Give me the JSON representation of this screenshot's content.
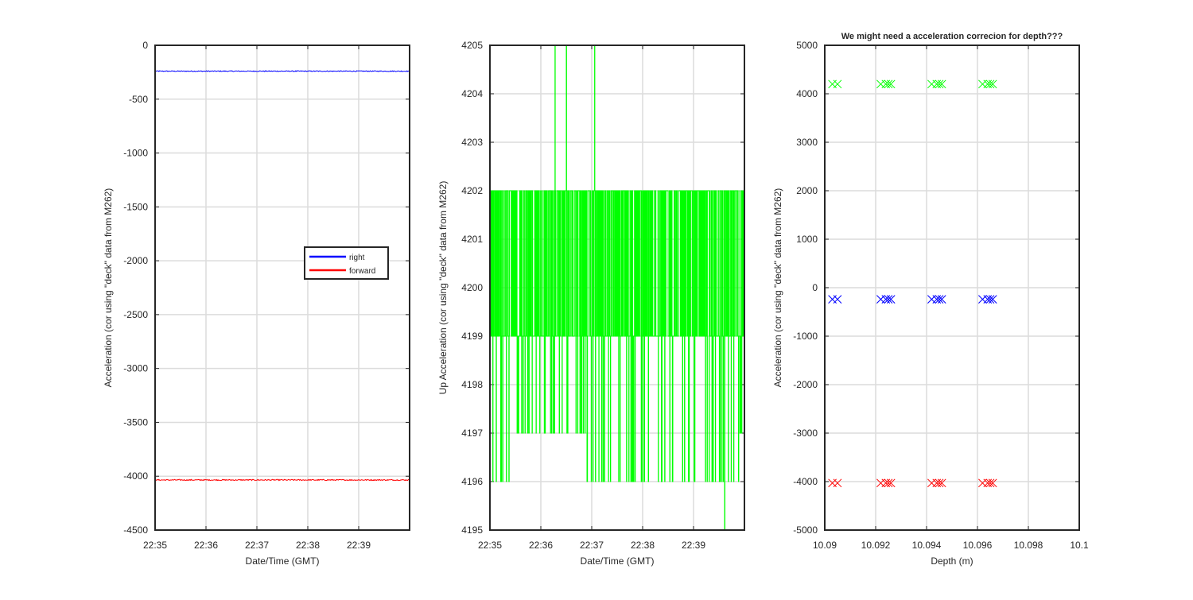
{
  "chart_data": [
    {
      "type": "line",
      "panel": "left",
      "xlabel": "Date/Time (GMT)",
      "ylabel": "Acceleration (cor using \"deck\" data from M262)",
      "xlim": [
        "22:35",
        "22:40"
      ],
      "ylim": [
        -4500,
        0
      ],
      "x_ticks": [
        "22:35",
        "22:36",
        "22:37",
        "22:38",
        "22:39"
      ],
      "y_ticks": [
        0,
        -500,
        -1000,
        -1500,
        -2000,
        -2500,
        -3000,
        -3500,
        -4000,
        -4500
      ],
      "grid": true,
      "legend": "center-right",
      "series": [
        {
          "name": "right",
          "color": "#0000ff",
          "level": -240,
          "noise": 8
        },
        {
          "name": "forward",
          "color": "#ff0000",
          "level": -4035,
          "noise": 10
        }
      ]
    },
    {
      "type": "line",
      "panel": "middle",
      "xlabel": "Date/Time (GMT)",
      "ylabel": "Up Acceleration (cor using \"deck\" data from M262)",
      "xlim": [
        "22:35",
        "22:40"
      ],
      "ylim": [
        4195,
        4205
      ],
      "x_ticks": [
        "22:35",
        "22:36",
        "22:37",
        "22:38",
        "22:39"
      ],
      "y_ticks": [
        4195,
        4196,
        4197,
        4198,
        4199,
        4200,
        4201,
        4202,
        4203,
        4204,
        4205
      ],
      "grid": true,
      "series": [
        {
          "color": "#00ff00",
          "dominant_range": [
            4199,
            4202
          ],
          "extreme_range": [
            4195,
            4205
          ]
        }
      ]
    },
    {
      "type": "scatter",
      "panel": "right",
      "title": "We might need a acceleration correcion for depth???",
      "xlabel": "Depth (m)",
      "ylabel": "Acceleration (cor using \"deck\" data from M262)",
      "xlim": [
        10.09,
        10.1
      ],
      "ylim": [
        -5000,
        5000
      ],
      "x_ticks": [
        "10.09",
        "10.092",
        "10.094",
        "10.096",
        "10.098",
        "10.1"
      ],
      "y_ticks": [
        5000,
        4000,
        3000,
        2000,
        1000,
        0,
        -1000,
        -2000,
        -3000,
        -4000,
        -5000
      ],
      "grid": true,
      "marker": "x",
      "x": [
        10.0903,
        10.0905,
        10.0922,
        10.0924,
        10.0925,
        10.0926,
        10.0942,
        10.0944,
        10.0945,
        10.0946,
        10.0962,
        10.0964,
        10.0965,
        10.0966
      ],
      "series": [
        {
          "color": "#00ff00",
          "y": [
            4200,
            4200,
            4200,
            4200,
            4200,
            4200,
            4200,
            4200,
            4200,
            4200,
            4200,
            4200,
            4200,
            4200
          ]
        },
        {
          "color": "#0000ff",
          "y": [
            -240,
            -240,
            -240,
            -240,
            -240,
            -240,
            -240,
            -240,
            -240,
            -240,
            -240,
            -240,
            -240,
            -240
          ]
        },
        {
          "color": "#ff0000",
          "y": [
            -4030,
            -4030,
            -4030,
            -4030,
            -4030,
            -4030,
            -4030,
            -4030,
            -4030,
            -4030,
            -4030,
            -4030,
            -4030,
            -4030
          ]
        }
      ]
    }
  ]
}
